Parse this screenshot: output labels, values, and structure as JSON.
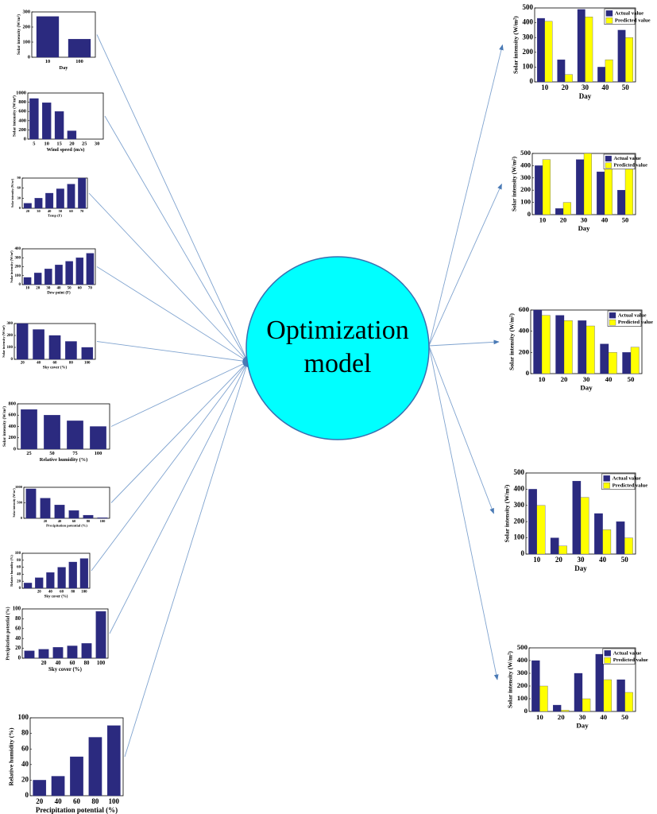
{
  "center": {
    "lines": [
      "Optimization",
      "model"
    ]
  },
  "chart_data": [
    {
      "type": "bar",
      "y_label": "Solar intensity (W/m²)",
      "x_label": "Day",
      "categories": [
        "10",
        "100"
      ],
      "values": [
        270,
        120
      ],
      "color": "#2b2a7f",
      "ylim": [
        0,
        300
      ],
      "yticks": [
        0,
        100,
        200,
        300
      ]
    },
    {
      "type": "bar",
      "y_label": "Solar intensity (W/m²)",
      "x_label": "Wind speed (m/s)",
      "categories": [
        "5",
        "10",
        "15",
        "20",
        "25",
        "30"
      ],
      "values": [
        880,
        790,
        600,
        180,
        null,
        null
      ],
      "color": "#2b2a7f",
      "ylim": [
        0,
        1000
      ],
      "yticks": [
        0,
        200,
        400,
        600,
        800,
        1000
      ]
    },
    {
      "type": "bar",
      "y_label": "Solar intensity (W/m²)",
      "x_label": "Temp (F)",
      "categories": [
        "20",
        "30",
        "40",
        "50",
        "60",
        "70"
      ],
      "values": [
        15,
        30,
        45,
        58,
        72,
        90
      ],
      "color": "#2b2a7f",
      "ylim": [
        0,
        90
      ],
      "yticks": [
        0,
        30,
        60,
        90
      ]
    },
    {
      "type": "bar",
      "y_label": "Solar intensity (W/m²)",
      "x_label": "Dew point (F)",
      "categories": [
        "10",
        "20",
        "30",
        "40",
        "50",
        "60",
        "70"
      ],
      "values": [
        80,
        130,
        175,
        220,
        260,
        300,
        350
      ],
      "color": "#2b2a7f",
      "ylim": [
        0,
        400
      ],
      "yticks": [
        0,
        100,
        200,
        300,
        400
      ]
    },
    {
      "type": "bar",
      "y_label": "Solar intensity (W/m²)",
      "x_label": "Sky cover (%)",
      "categories": [
        "20",
        "40",
        "60",
        "80",
        "100"
      ],
      "values": [
        300,
        250,
        200,
        150,
        100
      ],
      "color": "#2b2a7f",
      "ylim": [
        0,
        300
      ],
      "yticks": [
        0,
        100,
        200,
        300
      ]
    },
    {
      "type": "bar",
      "y_label": "Solar intensity (W/m²)",
      "x_label": "Relative humidity (%)",
      "categories": [
        "25",
        "50",
        "75",
        "100"
      ],
      "values": [
        700,
        600,
        500,
        400
      ],
      "color": "#2b2a7f",
      "ylim": [
        0,
        800
      ],
      "yticks": [
        0,
        200,
        400,
        600,
        800
      ]
    },
    {
      "type": "bar",
      "y_label": "Solar intensity (W/m²)",
      "x_label": "Precipitation potential (%)",
      "categories": [
        null,
        "20",
        "40",
        "60",
        "80",
        "100"
      ],
      "values": [
        950,
        650,
        430,
        250,
        100,
        20
      ],
      "color": "#2b2a7f",
      "ylim": [
        0,
        1000
      ],
      "yticks": [
        0,
        500,
        1000
      ]
    },
    {
      "type": "bar",
      "y_label": "Relative humidity (%)",
      "x_label": "Sky cover (%)",
      "categories": [
        null,
        "20",
        "40",
        "60",
        "80",
        "100"
      ],
      "values": [
        15,
        30,
        45,
        60,
        75,
        85
      ],
      "color": "#2b2a7f",
      "ylim": [
        0,
        100
      ],
      "yticks": [
        0,
        20,
        40,
        60,
        80,
        100
      ]
    },
    {
      "type": "bar",
      "y_label": "Precipitation potential (%)",
      "x_label": "Sky cover (%)",
      "categories": [
        null,
        "20",
        "40",
        "60",
        "80",
        "100"
      ],
      "values": [
        15,
        18,
        22,
        25,
        30,
        95
      ],
      "color": "#2b2a7f",
      "ylim": [
        0,
        100
      ],
      "yticks": [
        0,
        20,
        40,
        60,
        80,
        100
      ]
    },
    {
      "type": "bar",
      "y_label": "Relative humidity (%)",
      "x_label": "Precipitation potential (%)",
      "categories": [
        "20",
        "40",
        "60",
        "80",
        "100"
      ],
      "values": [
        20,
        25,
        50,
        75,
        90
      ],
      "color": "#2b2a7f",
      "ylim": [
        0,
        100
      ],
      "yticks": [
        0,
        20,
        40,
        60,
        80,
        100
      ]
    },
    {
      "type": "bar",
      "y_label": "Solar intensity (W/m²)",
      "x_label": "Day",
      "categories": [
        "10",
        "20",
        "30",
        "40",
        "50"
      ],
      "series": [
        {
          "name": "Actual value",
          "color": "#2b2a7f",
          "values": [
            430,
            150,
            490,
            100,
            350
          ]
        },
        {
          "name": "Predicted value",
          "color": "#ffff00",
          "values": [
            410,
            50,
            440,
            150,
            300
          ]
        }
      ],
      "ylim": [
        0,
        500
      ],
      "yticks": [
        0,
        100,
        200,
        300,
        400,
        500
      ],
      "legend": "upper right"
    },
    {
      "type": "bar",
      "y_label": "Solar intensity (W/m²)",
      "x_label": "Day",
      "categories": [
        "10",
        "20",
        "30",
        "40",
        "50"
      ],
      "series": [
        {
          "name": "Actual value",
          "color": "#2b2a7f",
          "values": [
            400,
            50,
            450,
            350,
            200
          ]
        },
        {
          "name": "Predicted value",
          "color": "#ffff00",
          "values": [
            450,
            100,
            500,
            400,
            380
          ]
        }
      ],
      "ylim": [
        0,
        500
      ],
      "yticks": [
        0,
        100,
        200,
        300,
        400,
        500
      ],
      "legend": "upper right"
    },
    {
      "type": "bar",
      "y_label": "Solar intensity (W/m²)",
      "x_label": "Day",
      "categories": [
        "10",
        "20",
        "30",
        "40",
        "50"
      ],
      "series": [
        {
          "name": "Actual value",
          "color": "#2b2a7f",
          "values": [
            600,
            550,
            500,
            280,
            200
          ]
        },
        {
          "name": "Predicted value",
          "color": "#ffff00",
          "values": [
            550,
            500,
            450,
            200,
            250
          ]
        }
      ],
      "ylim": [
        0,
        600
      ],
      "yticks": [
        0,
        200,
        400,
        600
      ],
      "legend": "upper right"
    },
    {
      "type": "bar",
      "y_label": "Solar intensity (W/m²)",
      "x_label": "Day",
      "categories": [
        "10",
        "20",
        "30",
        "40",
        "50"
      ],
      "series": [
        {
          "name": "Actual value",
          "color": "#2b2a7f",
          "values": [
            400,
            100,
            450,
            250,
            200
          ]
        },
        {
          "name": "Predicted value",
          "color": "#ffff00",
          "values": [
            300,
            50,
            350,
            150,
            100
          ]
        }
      ],
      "ylim": [
        0,
        500
      ],
      "yticks": [
        0,
        100,
        200,
        300,
        400,
        500
      ],
      "legend": "upper right"
    },
    {
      "type": "bar",
      "y_label": "Solar intensity (W/m²)",
      "x_label": "Day",
      "categories": [
        "10",
        "20",
        "30",
        "40",
        "50"
      ],
      "series": [
        {
          "name": "Actual value",
          "color": "#2b2a7f",
          "values": [
            400,
            50,
            300,
            450,
            250
          ]
        },
        {
          "name": "Predicted value",
          "color": "#ffff00",
          "values": [
            200,
            10,
            100,
            250,
            150
          ]
        }
      ],
      "ylim": [
        0,
        500
      ],
      "yticks": [
        0,
        100,
        200,
        300,
        400,
        500
      ],
      "legend": "upper right"
    }
  ]
}
